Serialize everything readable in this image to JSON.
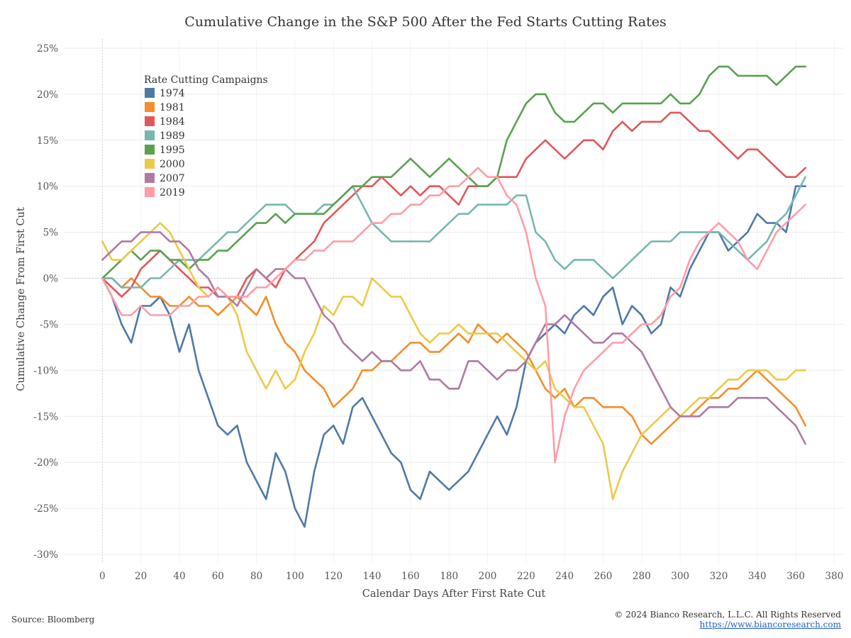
{
  "chart_data": {
    "type": "line",
    "title": "Cumulative Change in the S&P 500 After the Fed Starts Cutting Rates",
    "xlabel": "Calendar Days After First Rate Cut",
    "ylabel": "Cumulative Change From First Cut",
    "xlim": [
      -20,
      385
    ],
    "ylim": [
      -31,
      26
    ],
    "x_ticks": [
      0,
      20,
      40,
      60,
      80,
      100,
      120,
      140,
      160,
      180,
      200,
      220,
      240,
      260,
      280,
      300,
      320,
      340,
      360,
      380
    ],
    "y_ticks": [
      25,
      20,
      15,
      10,
      5,
      0,
      -5,
      -10,
      -15,
      -20,
      -25,
      -30
    ],
    "y_tick_labels": [
      "25%",
      "20%",
      "15%",
      "10%",
      "5%",
      "0%",
      "-5%",
      "-10%",
      "-15%",
      "-20%",
      "-25%",
      "-30%"
    ],
    "grid": true,
    "legend_title": "Rate Cutting Campaigns",
    "legend_position": "top-left",
    "series": [
      {
        "name": "1974",
        "color": "#4e79a7",
        "x": [
          0,
          5,
          10,
          15,
          20,
          25,
          30,
          35,
          40,
          45,
          50,
          55,
          60,
          65,
          70,
          75,
          80,
          85,
          90,
          95,
          100,
          105,
          110,
          115,
          120,
          125,
          130,
          135,
          140,
          145,
          150,
          155,
          160,
          165,
          170,
          175,
          180,
          185,
          190,
          195,
          200,
          205,
          210,
          215,
          220,
          225,
          230,
          235,
          240,
          245,
          250,
          255,
          260,
          265,
          270,
          275,
          280,
          285,
          290,
          295,
          300,
          305,
          310,
          315,
          320,
          325,
          330,
          335,
          340,
          345,
          350,
          355,
          360,
          365
        ],
        "y": [
          0,
          -2,
          -5,
          -7,
          -3,
          -3,
          -2,
          -4,
          -8,
          -5,
          -10,
          -13,
          -16,
          -17,
          -16,
          -20,
          -22,
          -24,
          -19,
          -21,
          -25,
          -27,
          -21,
          -17,
          -16,
          -18,
          -14,
          -13,
          -15,
          -17,
          -19,
          -20,
          -23,
          -24,
          -21,
          -22,
          -23,
          -22,
          -21,
          -19,
          -17,
          -15,
          -17,
          -14,
          -9,
          -7,
          -6,
          -5,
          -6,
          -4,
          -3,
          -4,
          -2,
          -1,
          -5,
          -3,
          -4,
          -6,
          -5,
          -1,
          -2,
          1,
          3,
          5,
          5,
          3,
          4,
          5,
          7,
          6,
          6,
          5,
          10,
          10
        ]
      },
      {
        "name": "1981",
        "color": "#f28e2b",
        "x": [
          0,
          5,
          10,
          15,
          20,
          25,
          30,
          35,
          40,
          45,
          50,
          55,
          60,
          65,
          70,
          75,
          80,
          85,
          90,
          95,
          100,
          105,
          110,
          115,
          120,
          125,
          130,
          135,
          140,
          145,
          150,
          155,
          160,
          165,
          170,
          175,
          180,
          185,
          190,
          195,
          200,
          205,
          210,
          215,
          220,
          225,
          230,
          235,
          240,
          245,
          250,
          255,
          260,
          265,
          270,
          275,
          280,
          285,
          290,
          295,
          300,
          305,
          310,
          315,
          320,
          325,
          330,
          335,
          340,
          345,
          350,
          355,
          360,
          365
        ],
        "y": [
          0,
          0,
          -1,
          0,
          -1,
          -2,
          -2,
          -3,
          -3,
          -2,
          -3,
          -3,
          -4,
          -3,
          -2,
          -3,
          -4,
          -2,
          -5,
          -7,
          -8,
          -10,
          -11,
          -12,
          -14,
          -13,
          -12,
          -10,
          -10,
          -9,
          -9,
          -8,
          -7,
          -7,
          -8,
          -8,
          -7,
          -6,
          -7,
          -5,
          -6,
          -7,
          -6,
          -7,
          -8,
          -10,
          -12,
          -13,
          -12,
          -14,
          -13,
          -13,
          -14,
          -14,
          -14,
          -15,
          -17,
          -18,
          -17,
          -16,
          -15,
          -15,
          -14,
          -13,
          -13,
          -12,
          -12,
          -11,
          -10,
          -11,
          -12,
          -13,
          -14,
          -16
        ]
      },
      {
        "name": "1984",
        "color": "#e15759",
        "x": [
          0,
          5,
          10,
          15,
          20,
          25,
          30,
          35,
          40,
          45,
          50,
          55,
          60,
          65,
          70,
          75,
          80,
          85,
          90,
          95,
          100,
          105,
          110,
          115,
          120,
          125,
          130,
          135,
          140,
          145,
          150,
          155,
          160,
          165,
          170,
          175,
          180,
          185,
          190,
          195,
          200,
          205,
          210,
          215,
          220,
          225,
          230,
          235,
          240,
          245,
          250,
          255,
          260,
          265,
          270,
          275,
          280,
          285,
          290,
          295,
          300,
          305,
          310,
          315,
          320,
          325,
          330,
          335,
          340,
          345,
          350,
          355,
          360,
          365
        ],
        "y": [
          0,
          -1,
          -2,
          -1,
          1,
          2,
          3,
          2,
          1,
          0,
          -1,
          -1,
          -2,
          -2,
          -2,
          0,
          1,
          0,
          -1,
          1,
          2,
          3,
          4,
          6,
          7,
          8,
          9,
          10,
          10,
          11,
          10,
          9,
          10,
          9,
          10,
          10,
          9,
          8,
          10,
          10,
          10,
          11,
          11,
          11,
          13,
          14,
          15,
          14,
          13,
          14,
          15,
          15,
          14,
          16,
          17,
          16,
          17,
          17,
          17,
          18,
          18,
          17,
          16,
          16,
          15,
          14,
          13,
          14,
          14,
          13,
          12,
          11,
          11,
          12
        ]
      },
      {
        "name": "1989",
        "color": "#76b7b2",
        "x": [
          0,
          5,
          10,
          15,
          20,
          25,
          30,
          35,
          40,
          45,
          50,
          55,
          60,
          65,
          70,
          75,
          80,
          85,
          90,
          95,
          100,
          105,
          110,
          115,
          120,
          125,
          130,
          135,
          140,
          145,
          150,
          155,
          160,
          165,
          170,
          175,
          180,
          185,
          190,
          195,
          200,
          205,
          210,
          215,
          220,
          225,
          230,
          235,
          240,
          245,
          250,
          255,
          260,
          265,
          270,
          275,
          280,
          285,
          290,
          295,
          300,
          305,
          310,
          315,
          320,
          325,
          330,
          335,
          340,
          345,
          350,
          355,
          360,
          365
        ],
        "y": [
          0,
          0,
          -1,
          -1,
          -1,
          0,
          0,
          1,
          2,
          2,
          2,
          3,
          4,
          5,
          5,
          6,
          7,
          8,
          8,
          8,
          7,
          7,
          7,
          8,
          8,
          9,
          10,
          8,
          6,
          5,
          4,
          4,
          4,
          4,
          4,
          5,
          6,
          7,
          7,
          8,
          8,
          8,
          8,
          9,
          9,
          5,
          4,
          2,
          1,
          2,
          2,
          2,
          1,
          0,
          1,
          2,
          3,
          4,
          4,
          4,
          5,
          5,
          5,
          5,
          5,
          4,
          3,
          2,
          3,
          4,
          6,
          7,
          9,
          11
        ]
      },
      {
        "name": "1995",
        "color": "#59a14f",
        "x": [
          0,
          5,
          10,
          15,
          20,
          25,
          30,
          35,
          40,
          45,
          50,
          55,
          60,
          65,
          70,
          75,
          80,
          85,
          90,
          95,
          100,
          105,
          110,
          115,
          120,
          125,
          130,
          135,
          140,
          145,
          150,
          155,
          160,
          165,
          170,
          175,
          180,
          185,
          190,
          195,
          200,
          205,
          210,
          215,
          220,
          225,
          230,
          235,
          240,
          245,
          250,
          255,
          260,
          265,
          270,
          275,
          280,
          285,
          290,
          295,
          300,
          305,
          310,
          315,
          320,
          325,
          330,
          335,
          340,
          345,
          350,
          355,
          360,
          365
        ],
        "y": [
          0,
          1,
          2,
          3,
          2,
          3,
          3,
          2,
          2,
          1,
          2,
          2,
          3,
          3,
          4,
          5,
          6,
          6,
          7,
          6,
          7,
          7,
          7,
          7,
          8,
          9,
          10,
          10,
          11,
          11,
          11,
          12,
          13,
          12,
          11,
          12,
          13,
          12,
          11,
          10,
          10,
          11,
          15,
          17,
          19,
          20,
          20,
          18,
          17,
          17,
          18,
          19,
          19,
          18,
          19,
          19,
          19,
          19,
          19,
          20,
          19,
          19,
          20,
          22,
          23,
          23,
          22,
          22,
          22,
          22,
          21,
          22,
          23,
          23
        ]
      },
      {
        "name": "2000",
        "color": "#edc948",
        "x": [
          0,
          5,
          10,
          15,
          20,
          25,
          30,
          35,
          40,
          45,
          50,
          55,
          60,
          65,
          70,
          75,
          80,
          85,
          90,
          95,
          100,
          105,
          110,
          115,
          120,
          125,
          130,
          135,
          140,
          145,
          150,
          155,
          160,
          165,
          170,
          175,
          180,
          185,
          190,
          195,
          200,
          205,
          210,
          215,
          220,
          225,
          230,
          235,
          240,
          245,
          250,
          255,
          260,
          265,
          270,
          275,
          280,
          285,
          290,
          295,
          300,
          305,
          310,
          315,
          320,
          325,
          330,
          335,
          340,
          345,
          350,
          355,
          360,
          365
        ],
        "y": [
          4,
          2,
          2,
          3,
          4,
          5,
          6,
          5,
          3,
          1,
          -1,
          -2,
          -1,
          -2,
          -4,
          -8,
          -10,
          -12,
          -10,
          -12,
          -11,
          -8,
          -6,
          -3,
          -4,
          -2,
          -2,
          -3,
          0,
          -1,
          -2,
          -2,
          -4,
          -6,
          -7,
          -6,
          -6,
          -5,
          -6,
          -6,
          -6,
          -6,
          -7,
          -8,
          -9,
          -10,
          -9,
          -12,
          -13,
          -14,
          -14,
          -16,
          -18,
          -24,
          -21,
          -19,
          -17,
          -16,
          -15,
          -14,
          -15,
          -14,
          -13,
          -13,
          -12,
          -11,
          -11,
          -10,
          -10,
          -10,
          -11,
          -11,
          -10,
          -10
        ]
      },
      {
        "name": "2007",
        "color": "#b07aa1",
        "x": [
          0,
          5,
          10,
          15,
          20,
          25,
          30,
          35,
          40,
          45,
          50,
          55,
          60,
          65,
          70,
          75,
          80,
          85,
          90,
          95,
          100,
          105,
          110,
          115,
          120,
          125,
          130,
          135,
          140,
          145,
          150,
          155,
          160,
          165,
          170,
          175,
          180,
          185,
          190,
          195,
          200,
          205,
          210,
          215,
          220,
          225,
          230,
          235,
          240,
          245,
          250,
          255,
          260,
          265,
          270,
          275,
          280,
          285,
          290,
          295,
          300,
          305,
          310,
          315,
          320,
          325,
          330,
          335,
          340,
          345,
          350,
          355,
          360,
          365
        ],
        "y": [
          2,
          3,
          4,
          4,
          5,
          5,
          5,
          4,
          4,
          3,
          1,
          0,
          -2,
          -2,
          -3,
          -1,
          1,
          0,
          1,
          1,
          0,
          0,
          -2,
          -4,
          -5,
          -7,
          -8,
          -9,
          -8,
          -9,
          -9,
          -10,
          -10,
          -9,
          -11,
          -11,
          -12,
          -12,
          -9,
          -9,
          -10,
          -11,
          -10,
          -10,
          -9,
          -7,
          -5,
          -5,
          -4,
          -5,
          -6,
          -7,
          -7,
          -6,
          -6,
          -7,
          -8,
          -10,
          -12,
          -14,
          -15,
          -15,
          -15,
          -14,
          -14,
          -14,
          -13,
          -13,
          -13,
          -13,
          -14,
          -15,
          -16,
          -18
        ]
      },
      {
        "name": "2019",
        "color": "#ff9da7",
        "x": [
          0,
          5,
          10,
          15,
          20,
          25,
          30,
          35,
          40,
          45,
          50,
          55,
          60,
          65,
          70,
          75,
          80,
          85,
          90,
          95,
          100,
          105,
          110,
          115,
          120,
          125,
          130,
          135,
          140,
          145,
          150,
          155,
          160,
          165,
          170,
          175,
          180,
          185,
          190,
          195,
          200,
          205,
          210,
          215,
          220,
          225,
          230,
          235,
          240,
          245,
          250,
          255,
          260,
          265,
          270,
          275,
          280,
          285,
          290,
          295,
          300,
          305,
          310,
          315,
          320,
          325,
          330,
          335,
          340,
          345,
          350,
          355,
          360,
          365
        ],
        "y": [
          0,
          -2,
          -4,
          -4,
          -3,
          -4,
          -4,
          -4,
          -3,
          -3,
          -2,
          -2,
          -1,
          -2,
          -2,
          -2,
          -1,
          -1,
          0,
          1,
          2,
          2,
          3,
          3,
          4,
          4,
          4,
          5,
          6,
          6,
          7,
          7,
          8,
          8,
          9,
          9,
          10,
          10,
          11,
          12,
          11,
          11,
          9,
          8,
          5,
          0,
          -3,
          -20,
          -15,
          -12,
          -10,
          -9,
          -8,
          -7,
          -7,
          -6,
          -5,
          -5,
          -4,
          -2,
          -1,
          2,
          4,
          5,
          6,
          5,
          4,
          2,
          1,
          3,
          5,
          6,
          7,
          8
        ]
      }
    ]
  },
  "footer": {
    "source": "Source: Bloomberg",
    "copyright": "© 2024 Bianco Research, L.L.C. All Rights Reserved",
    "url": "https://www.biancoresearch.com"
  }
}
